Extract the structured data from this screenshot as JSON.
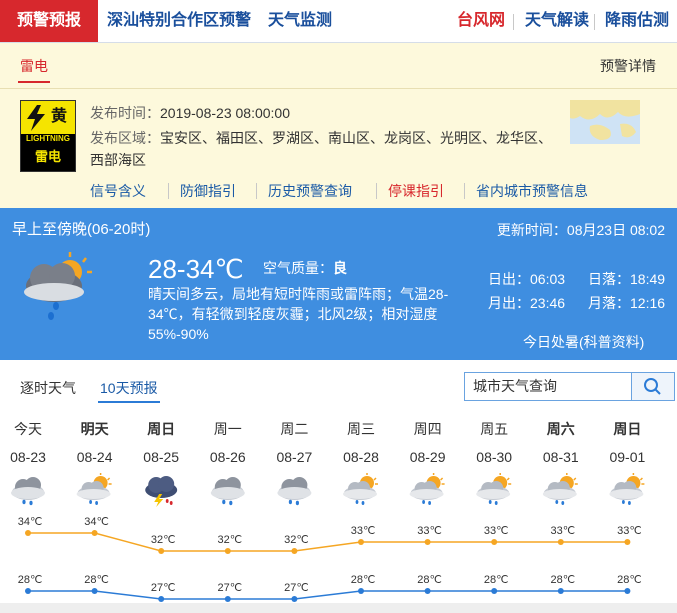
{
  "nav": {
    "home": "预警预报",
    "tabs": [
      "深汕特别合作区预警",
      "天气监测"
    ],
    "links": [
      "台风网",
      "天气解读",
      "降雨估测"
    ]
  },
  "warning": {
    "tab": "雷电",
    "detail": "预警详情",
    "icon": {
      "level": "黄",
      "en": "LIGHTNING",
      "name": "雷电"
    },
    "time_label": "发布时间：",
    "time": "2019-08-23 08:00:00",
    "area_label": "发布区域：",
    "area": "宝安区、福田区、罗湖区、南山区、龙岗区、光明区、龙华区、西部海区",
    "links": [
      "信号含义",
      "防御指引",
      "历史预警查询",
      "停课指引",
      "省内城市预警信息"
    ]
  },
  "today": {
    "period": "早上至傍晚(06-20时)",
    "update_label": "更新时间：",
    "update": "08月23日 08:02",
    "temp": "28-34℃",
    "aqi_label": "空气质量：",
    "aqi": "良",
    "desc": "晴天间多云，局地有短时阵雨或雷阵雨；气温28-34℃，有轻微到轻度灰霾；北风2级；相对湿度55%-90%",
    "astro": [
      [
        "日出：",
        "06:03"
      ],
      [
        "日落：",
        "18:49"
      ],
      [
        "月出：",
        "23:46"
      ],
      [
        "月落：",
        "12:16"
      ]
    ],
    "term": "今日处暑(科普资料)"
  },
  "tabs": [
    "逐时天气",
    "10天预报"
  ],
  "search": "城市天气查询",
  "chart_data": {
    "type": "line",
    "categories": [
      "今天",
      "明天",
      "周日",
      "周一",
      "周二",
      "周三",
      "周四",
      "周五",
      "周六",
      "周日"
    ],
    "dates": [
      "08-23",
      "08-24",
      "08-25",
      "08-26",
      "08-27",
      "08-28",
      "08-29",
      "08-30",
      "08-31",
      "09-01"
    ],
    "series": [
      {
        "color": "#f5a623",
        "values": [
          34,
          34,
          32,
          32,
          32,
          33,
          33,
          33,
          33,
          33
        ],
        "value_labels": [
          "34℃",
          "34℃",
          "32℃",
          "32℃",
          "32℃",
          "33℃",
          "33℃",
          "33℃",
          "33℃",
          "33℃"
        ]
      },
      {
        "color": "#2b7bd6",
        "values": [
          28,
          28,
          27,
          27,
          27,
          28,
          28,
          28,
          28,
          28
        ],
        "value_labels": [
          "28℃",
          "28℃",
          "27℃",
          "27℃",
          "27℃",
          "28℃",
          "28℃",
          "28℃",
          "28℃",
          "28℃"
        ]
      }
    ]
  }
}
